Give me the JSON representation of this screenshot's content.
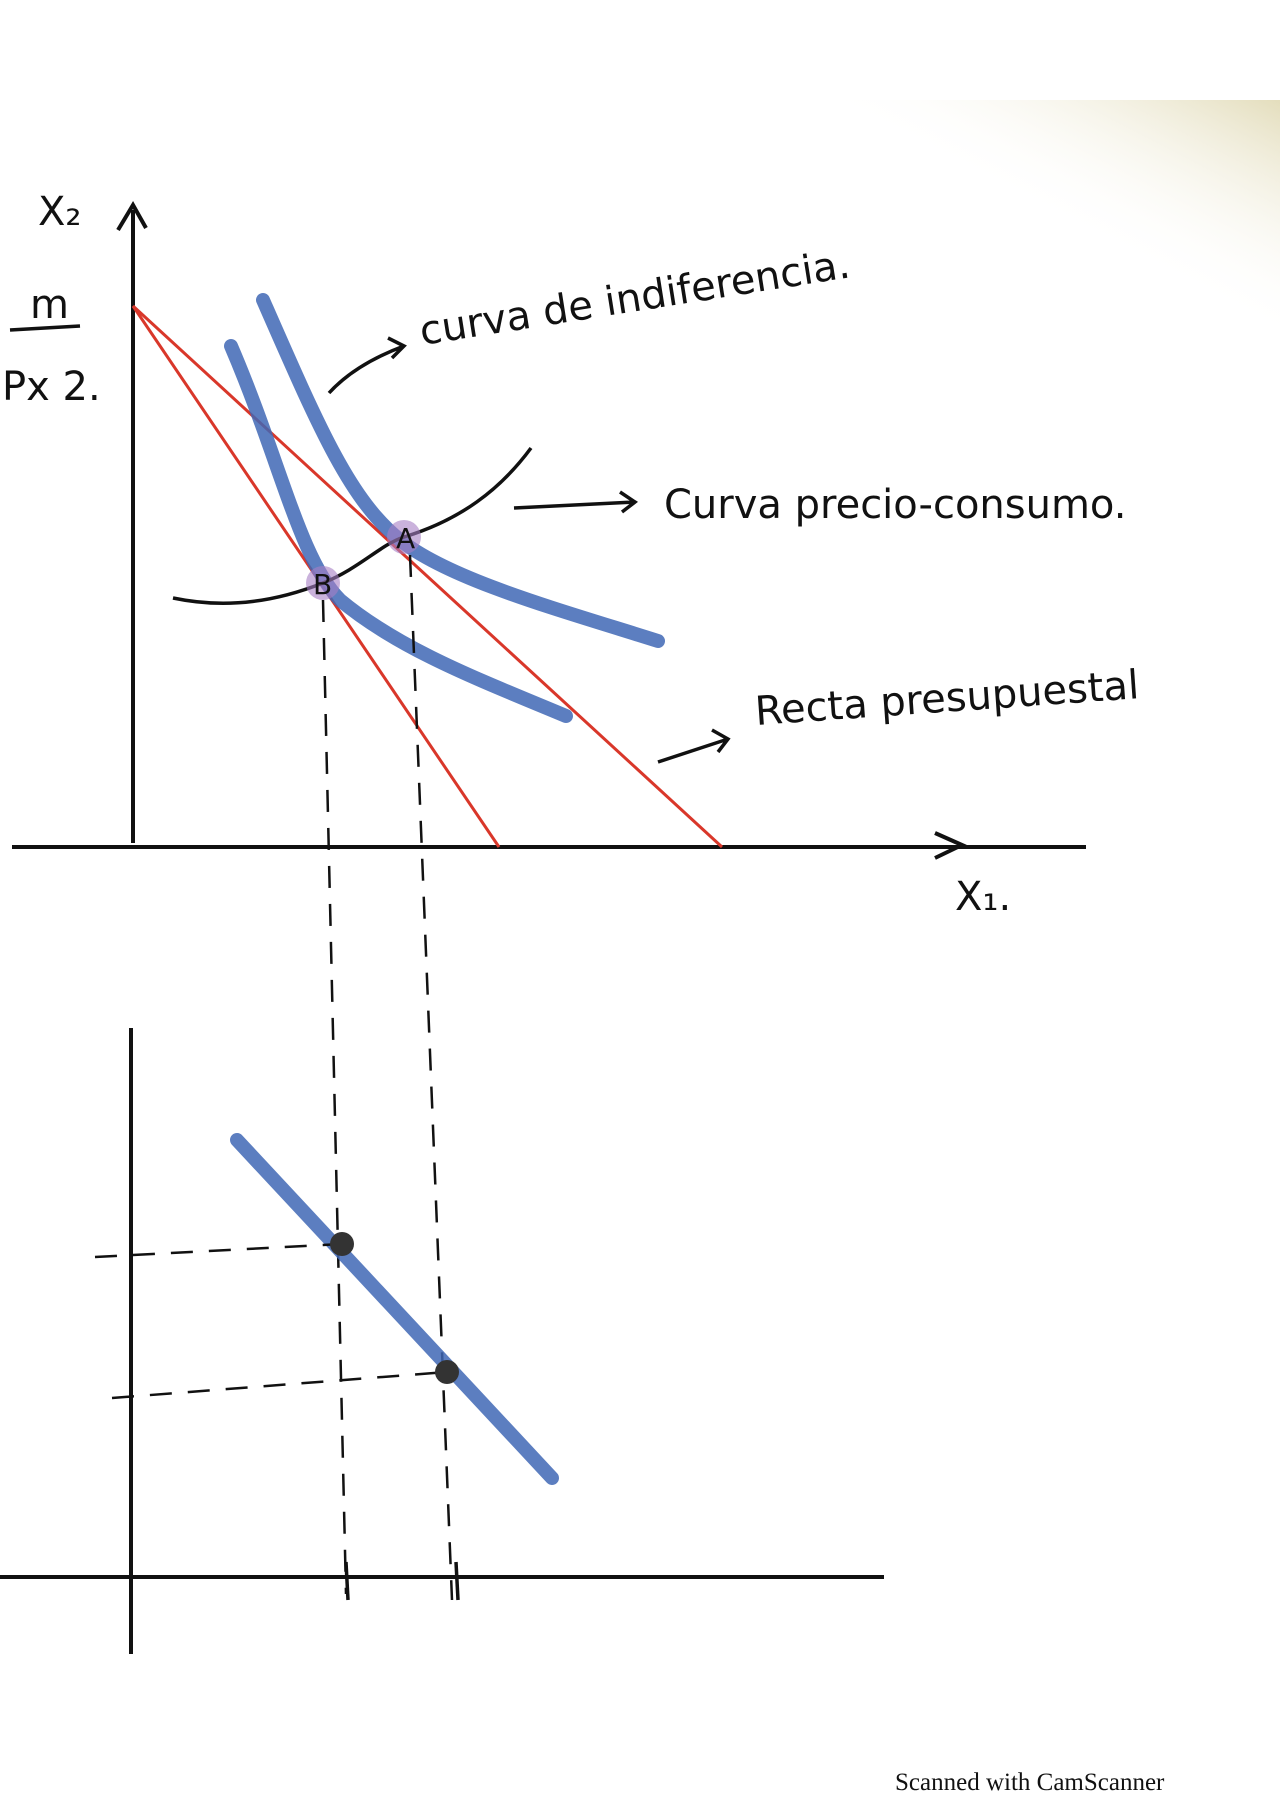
{
  "axes": {
    "y_label": "X₂",
    "x_label": "X₁."
  },
  "intercept_label": {
    "numerator": "m",
    "denominator": "Px 2."
  },
  "annotations": [
    "curva de indiferencia.",
    "Curva precio-consumo.",
    "Recta presupuestal"
  ],
  "points": [
    "A",
    "B"
  ],
  "footer": "Scanned with CamScanner"
}
